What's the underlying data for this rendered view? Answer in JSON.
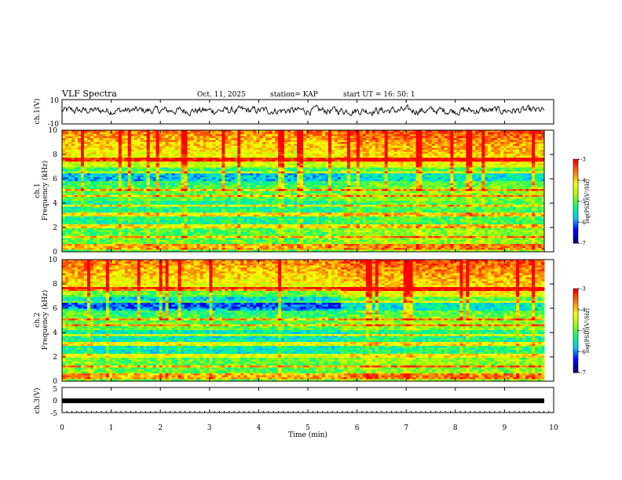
{
  "header": {
    "title": "VLF Spectra",
    "date": "Oct. 11, 2025",
    "station": "station= KAP",
    "start_ut": "start  UT =   16: 50: 1"
  },
  "colors": {
    "colormap": [
      "#000080",
      "#0000ff",
      "#00c8ff",
      "#00ff80",
      "#a0ff00",
      "#ffff00",
      "#ff8000",
      "#ff0000",
      "#ffffff"
    ],
    "trace": "#000000"
  },
  "chart_data": [
    {
      "type": "line",
      "panel": "ch1-waveform",
      "ylabel": "ch.1(V)",
      "ylim": [
        -10,
        10
      ],
      "yticks": [
        "10",
        "-10"
      ],
      "xlim": [
        0,
        10
      ],
      "description_series": "noise-like voltage waveform fluctuating roughly between -4 and +6 V",
      "series": [
        {
          "name": "ch.1",
          "approx_mean": 1,
          "approx_range": [
            -4,
            6
          ]
        }
      ]
    },
    {
      "type": "heatmap",
      "panel": "ch1-spectrogram",
      "ylabel": "ch.1\nFrequency  (kHz)",
      "ylim": [
        0,
        10
      ],
      "yticks": [
        "0",
        "2",
        "4",
        "6",
        "8",
        "10"
      ],
      "xlim": [
        0,
        10
      ],
      "colorbar": {
        "label": "log(PSD)(V²/Hz)",
        "range": [
          -7,
          -3
        ],
        "ticks": [
          "-3",
          "-4",
          "-5",
          "-6",
          "-7"
        ]
      },
      "regime_change_min": 5.65
    },
    {
      "type": "heatmap",
      "panel": "ch2-spectrogram",
      "ylabel": "ch.2\nFrequency  (kHz)",
      "ylim": [
        0,
        10
      ],
      "yticks": [
        "0",
        "2",
        "4",
        "6",
        "8",
        "10"
      ],
      "xlim": [
        0,
        10
      ],
      "colorbar": {
        "label": "log(PSD)(V²/Hz)",
        "range": [
          -7,
          -3
        ],
        "ticks": [
          "-3",
          "-4",
          "-5",
          "-6",
          "-7"
        ]
      },
      "regime_change_min": [
        0.6,
        5.65
      ]
    },
    {
      "type": "line",
      "panel": "ch3-waveform",
      "ylabel": "ch.3(V)",
      "ylim": [
        -5,
        5
      ],
      "yticks": [
        "5",
        "0",
        "-5"
      ],
      "xlim": [
        0,
        10
      ],
      "series": [
        {
          "name": "ch.3",
          "approx_value": 0
        }
      ]
    },
    {
      "type": "axis",
      "panel": "time-axis",
      "xlabel": "Time  (min)",
      "xticks": [
        "0",
        "1",
        "2",
        "3",
        "4",
        "5",
        "6",
        "7",
        "8",
        "9",
        "10"
      ],
      "xlim": [
        0,
        10
      ]
    }
  ]
}
